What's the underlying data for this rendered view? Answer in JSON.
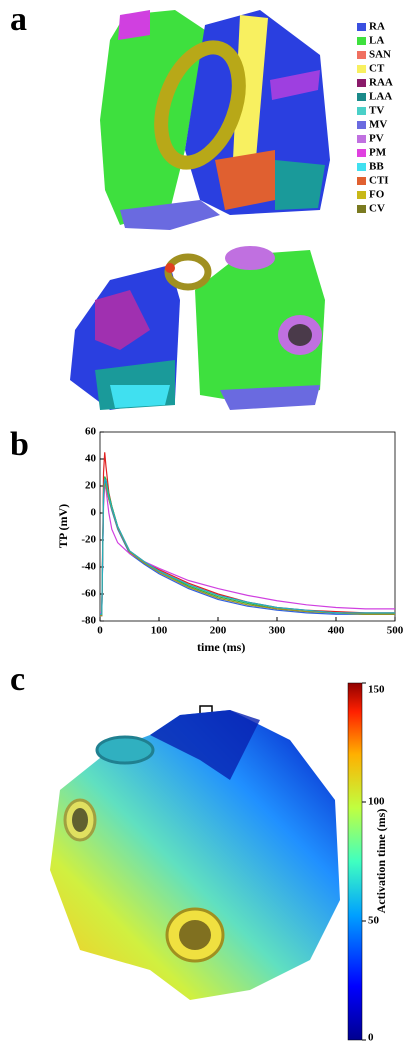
{
  "panel_labels": [
    "a",
    "b",
    "c"
  ],
  "legend": [
    {
      "name": "RA",
      "color": "#3a4fe0"
    },
    {
      "name": "LA",
      "color": "#3ee03e"
    },
    {
      "name": "SAN",
      "color": "#f07060"
    },
    {
      "name": "CT",
      "color": "#f8f060"
    },
    {
      "name": "RAA",
      "color": "#8a1a6a"
    },
    {
      "name": "LAA",
      "color": "#1a8a8a"
    },
    {
      "name": "TV",
      "color": "#4ad0c8"
    },
    {
      "name": "MV",
      "color": "#6a6ae0"
    },
    {
      "name": "PV",
      "color": "#c070e0"
    },
    {
      "name": "PM",
      "color": "#e040e0"
    },
    {
      "name": "BB",
      "color": "#40e0f0"
    },
    {
      "name": "CTI",
      "color": "#e06030"
    },
    {
      "name": "FO",
      "color": "#c8b818"
    },
    {
      "name": "CV",
      "color": "#7a7a20"
    }
  ],
  "chart_data": {
    "type": "line",
    "xlabel": "time (ms)",
    "ylabel": "TP (mV)",
    "x": [
      0,
      3,
      6,
      8,
      10,
      15,
      20,
      30,
      50,
      75,
      100,
      150,
      200,
      250,
      300,
      350,
      400,
      450,
      500
    ],
    "series": [
      {
        "color": "#e02020",
        "values": [
          -76,
          -76,
          30,
          45,
          35,
          15,
          5,
          -10,
          -28,
          -36,
          -42,
          -52,
          -60,
          -66,
          -70,
          -72,
          -73,
          -74,
          -74
        ]
      },
      {
        "color": "#3060e0",
        "values": [
          -76,
          -76,
          10,
          24,
          22,
          10,
          2,
          -12,
          -30,
          -38,
          -45,
          -56,
          -64,
          -69,
          -72,
          -74,
          -75,
          -75,
          -75
        ]
      },
      {
        "color": "#30b040",
        "values": [
          -75,
          -75,
          15,
          27,
          25,
          14,
          5,
          -10,
          -29,
          -37,
          -43,
          -54,
          -62,
          -67,
          -71,
          -73,
          -74,
          -75,
          -75
        ]
      },
      {
        "color": "#d040e0",
        "values": [
          -74,
          -74,
          5,
          20,
          18,
          0,
          -12,
          -22,
          -30,
          -36,
          -41,
          -50,
          -56,
          -61,
          -65,
          -68,
          -70,
          -71,
          -71
        ]
      },
      {
        "color": "#a09020",
        "values": [
          -76,
          -76,
          12,
          22,
          20,
          10,
          3,
          -11,
          -29,
          -37,
          -44,
          -55,
          -63,
          -68,
          -71,
          -73,
          -74,
          -75,
          -75
        ]
      },
      {
        "color": "#20b0c0",
        "values": [
          -75,
          -75,
          14,
          25,
          24,
          12,
          4,
          -10,
          -28,
          -36,
          -43,
          -53,
          -61,
          -66,
          -70,
          -72,
          -74,
          -74,
          -74
        ]
      }
    ],
    "xlim": [
      0,
      500
    ],
    "ylim": [
      -80,
      60
    ],
    "xticks": [
      0,
      100,
      200,
      300,
      400,
      500
    ],
    "yticks": [
      -80,
      -60,
      -40,
      -20,
      0,
      20,
      40,
      60
    ]
  },
  "colorbar": {
    "label": "Activation time (ms)",
    "lim": [
      0,
      150
    ],
    "ticks": [
      0,
      50,
      100,
      150
    ]
  }
}
